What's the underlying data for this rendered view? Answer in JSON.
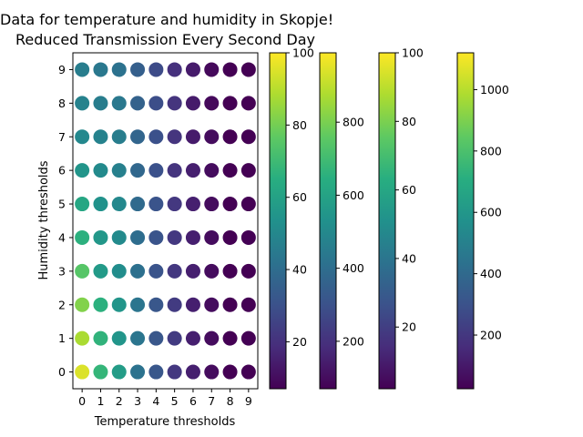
{
  "title_line1": "Data for temperature and humidity in Skopje!",
  "title_line2": "Reduced Transmission Every Second Day",
  "chart_data": {
    "type": "scatter",
    "title": "Data for temperature and humidity in Skopje! Reduced Transmission Every Second Day",
    "xlabel": "Temperature thresholds",
    "ylabel": "Humidity thresholds",
    "x_ticks": [
      "0",
      "1",
      "2",
      "3",
      "4",
      "5",
      "6",
      "7",
      "8",
      "9"
    ],
    "y_ticks": [
      "0",
      "1",
      "2",
      "3",
      "4",
      "5",
      "6",
      "7",
      "8",
      "9"
    ],
    "xlim": [
      -0.5,
      9.5
    ],
    "ylim": [
      -0.5,
      9.5
    ],
    "colormap": "viridis",
    "color_grid_by_humidity_row_then_temperature": [
      [
        95,
        68,
        58,
        42,
        32,
        22,
        15,
        10,
        5,
        3
      ],
      [
        88,
        67,
        55,
        43,
        32,
        23,
        15,
        10,
        5,
        3
      ],
      [
        82,
        66,
        55,
        43,
        32,
        23,
        15,
        10,
        5,
        3
      ],
      [
        75,
        57,
        52,
        41,
        31,
        22,
        15,
        10,
        5,
        3
      ],
      [
        66,
        56,
        51,
        40,
        31,
        22,
        15,
        10,
        5,
        3
      ],
      [
        62,
        54,
        50,
        39,
        31,
        22,
        15,
        10,
        5,
        3
      ],
      [
        55,
        51,
        47,
        38,
        30,
        21,
        15,
        10,
        5,
        3
      ],
      [
        50,
        48,
        46,
        37,
        30,
        21,
        14,
        10,
        5,
        3
      ],
      [
        48,
        46,
        44,
        36,
        29,
        21,
        14,
        9,
        5,
        3
      ],
      [
        46,
        44,
        42,
        35,
        28,
        20,
        14,
        9,
        5,
        3
      ]
    ],
    "colorbars": [
      {
        "min": 7,
        "max": 100,
        "ticks": [
          "20",
          "40",
          "60",
          "80",
          "100"
        ],
        "tick_values": [
          20,
          40,
          60,
          80,
          100
        ]
      },
      {
        "min": 70,
        "max": 990,
        "ticks": [
          "200",
          "400",
          "600",
          "800"
        ],
        "tick_values": [
          200,
          400,
          600,
          800
        ]
      },
      {
        "min": 2,
        "max": 100,
        "ticks": [
          "20",
          "40",
          "60",
          "80",
          "100"
        ],
        "tick_values": [
          20,
          40,
          60,
          80,
          100
        ]
      },
      {
        "min": 25,
        "max": 1120,
        "ticks": [
          "200",
          "400",
          "600",
          "800",
          "1000"
        ],
        "tick_values": [
          200,
          400,
          600,
          800,
          1000
        ]
      }
    ],
    "grid": false,
    "legend": "none"
  }
}
